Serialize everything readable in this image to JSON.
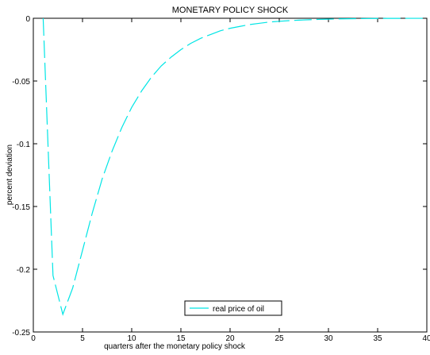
{
  "chart_data": {
    "type": "line",
    "title": "MONETARY POLICY SHOCK",
    "xlabel": "quarters after the monetary policy shock",
    "ylabel": "percent deviation",
    "xlim": [
      0,
      40
    ],
    "ylim": [
      -0.25,
      0
    ],
    "x_ticks": [
      0,
      5,
      10,
      15,
      20,
      25,
      30,
      35,
      40
    ],
    "x_tick_labels": [
      "0",
      "5",
      "10",
      "15",
      "20",
      "25",
      "30",
      "35",
      "40"
    ],
    "y_ticks": [
      0,
      -0.05,
      -0.1,
      -0.15,
      -0.2,
      -0.25
    ],
    "y_tick_labels": [
      "0",
      "-0.05",
      "-0.1",
      "-0.15",
      "-0.2",
      "-0.25"
    ],
    "grid": false,
    "legend_position": "bottom-center",
    "series": [
      {
        "name": "real price of oil",
        "color": "#00e5e5",
        "line_style": "dashed",
        "x": [
          1,
          2,
          3,
          4,
          5,
          6,
          7,
          8,
          9,
          10,
          11,
          12,
          13,
          14,
          15,
          16,
          17,
          18,
          19,
          20,
          21,
          22,
          23,
          24,
          25,
          26,
          27,
          28,
          29,
          30,
          31,
          32,
          33,
          34,
          35,
          36,
          37,
          38,
          39,
          40
        ],
        "y": [
          0,
          -0.205,
          -0.236,
          -0.215,
          -0.185,
          -0.155,
          -0.128,
          -0.106,
          -0.087,
          -0.071,
          -0.058,
          -0.047,
          -0.038,
          -0.031,
          -0.025,
          -0.02,
          -0.016,
          -0.013,
          -0.01,
          -0.008,
          -0.0065,
          -0.005,
          -0.004,
          -0.003,
          -0.0024,
          -0.0019,
          -0.0015,
          -0.0012,
          -0.0009,
          -0.0007,
          -0.0005,
          -0.0004,
          -0.0003,
          -0.0002,
          -0.00015,
          -0.0001,
          -8e-05,
          -5e-05,
          -3e-05,
          -2e-05
        ]
      }
    ]
  }
}
